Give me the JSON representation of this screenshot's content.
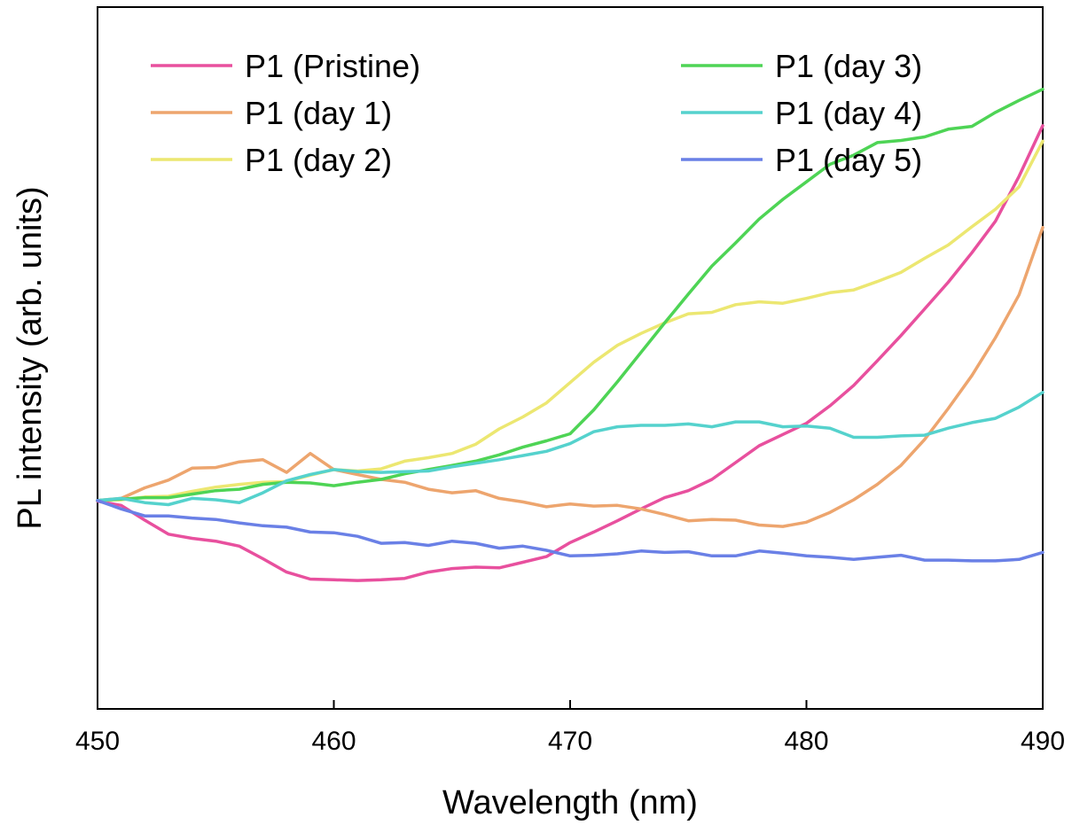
{
  "chart_data": {
    "type": "line",
    "xlabel": "Wavelength (nm)",
    "ylabel": "PL intensity (arb. units)",
    "xlim": [
      450,
      490
    ],
    "ylim": [
      0,
      1
    ],
    "xticks": [
      450,
      460,
      470,
      480,
      490
    ],
    "xtick_labels": [
      "450",
      "460",
      "470",
      "480",
      "490"
    ],
    "y_ticks_shown": false,
    "grid": false,
    "legend_position": "top",
    "x": [
      450,
      451,
      452,
      453,
      454,
      455,
      456,
      457,
      458,
      459,
      460,
      461,
      462,
      463,
      464,
      465,
      466,
      467,
      468,
      469,
      470,
      471,
      472,
      473,
      474,
      475,
      476,
      477,
      478,
      479,
      480,
      481,
      482,
      483,
      484,
      485,
      486,
      487,
      488,
      489,
      490
    ],
    "series": [
      {
        "name": "P1 (Pristine)",
        "color": "#E8509E",
        "values": [
          0.296,
          0.29,
          0.269,
          0.249,
          0.243,
          0.239,
          0.232,
          0.214,
          0.195,
          0.185,
          0.184,
          0.183,
          0.184,
          0.186,
          0.195,
          0.2,
          0.202,
          0.201,
          0.209,
          0.217,
          0.237,
          0.252,
          0.268,
          0.285,
          0.301,
          0.311,
          0.327,
          0.351,
          0.375,
          0.391,
          0.407,
          0.432,
          0.461,
          0.496,
          0.532,
          0.57,
          0.608,
          0.65,
          0.695,
          0.759,
          0.831
        ]
      },
      {
        "name": "P1 (day 1)",
        "color": "#EDA56E",
        "values": [
          0.297,
          0.3,
          0.315,
          0.326,
          0.343,
          0.344,
          0.352,
          0.355,
          0.337,
          0.364,
          0.341,
          0.334,
          0.327,
          0.323,
          0.313,
          0.308,
          0.311,
          0.3,
          0.295,
          0.288,
          0.292,
          0.289,
          0.29,
          0.285,
          0.277,
          0.268,
          0.27,
          0.269,
          0.262,
          0.26,
          0.266,
          0.28,
          0.298,
          0.32,
          0.347,
          0.384,
          0.428,
          0.475,
          0.529,
          0.59,
          0.686
        ]
      },
      {
        "name": "P1 (day 2)",
        "color": "#ECE771",
        "values": [
          0.297,
          0.298,
          0.302,
          0.303,
          0.31,
          0.316,
          0.32,
          0.323,
          0.324,
          0.333,
          0.341,
          0.339,
          0.342,
          0.353,
          0.358,
          0.364,
          0.377,
          0.399,
          0.416,
          0.436,
          0.465,
          0.494,
          0.518,
          0.535,
          0.55,
          0.563,
          0.565,
          0.576,
          0.58,
          0.578,
          0.585,
          0.593,
          0.597,
          0.609,
          0.622,
          0.642,
          0.661,
          0.687,
          0.712,
          0.744,
          0.809
        ]
      },
      {
        "name": "P1 (day 3)",
        "color": "#4ED455",
        "values": [
          0.297,
          0.299,
          0.301,
          0.301,
          0.306,
          0.311,
          0.313,
          0.32,
          0.323,
          0.322,
          0.318,
          0.323,
          0.327,
          0.335,
          0.341,
          0.347,
          0.353,
          0.362,
          0.373,
          0.382,
          0.392,
          0.426,
          0.466,
          0.508,
          0.55,
          0.591,
          0.631,
          0.664,
          0.698,
          0.726,
          0.751,
          0.776,
          0.789,
          0.807,
          0.81,
          0.815,
          0.826,
          0.83,
          0.85,
          0.867,
          0.883
        ]
      },
      {
        "name": "P1 (day 4)",
        "color": "#55D2CD",
        "values": [
          0.297,
          0.3,
          0.294,
          0.291,
          0.3,
          0.298,
          0.294,
          0.308,
          0.325,
          0.334,
          0.341,
          0.338,
          0.337,
          0.338,
          0.339,
          0.345,
          0.35,
          0.355,
          0.361,
          0.367,
          0.378,
          0.395,
          0.402,
          0.404,
          0.404,
          0.406,
          0.402,
          0.409,
          0.409,
          0.402,
          0.403,
          0.4,
          0.387,
          0.387,
          0.389,
          0.39,
          0.4,
          0.408,
          0.414,
          0.43,
          0.451
        ]
      },
      {
        "name": "P1 (day 5)",
        "color": "#6A80E6",
        "values": [
          0.297,
          0.285,
          0.275,
          0.275,
          0.272,
          0.27,
          0.265,
          0.261,
          0.259,
          0.252,
          0.251,
          0.246,
          0.236,
          0.237,
          0.233,
          0.239,
          0.236,
          0.229,
          0.232,
          0.226,
          0.218,
          0.219,
          0.221,
          0.225,
          0.223,
          0.224,
          0.218,
          0.218,
          0.225,
          0.222,
          0.218,
          0.216,
          0.213,
          0.216,
          0.219,
          0.212,
          0.212,
          0.211,
          0.211,
          0.213,
          0.223
        ]
      }
    ]
  }
}
